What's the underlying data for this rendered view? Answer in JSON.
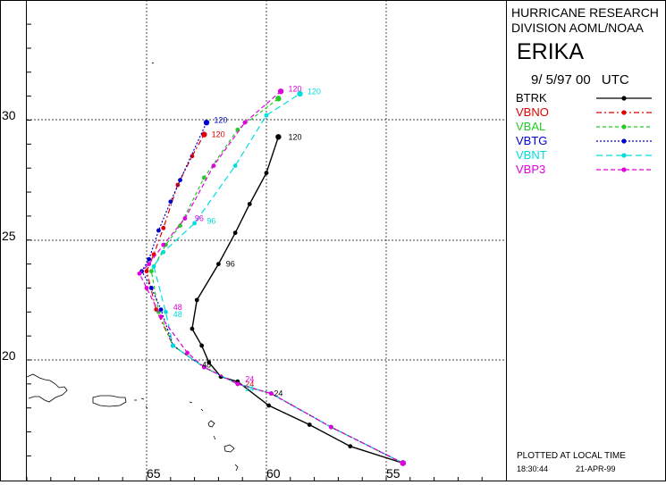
{
  "header": {
    "line1": "HURRICANE RESEARCH",
    "line2": "DIVISION AOML/NOAA",
    "storm_name": "ERIKA",
    "date": "9/ 5/97 00",
    "tz": "UTC"
  },
  "footer": {
    "plotted": "PLOTTED AT LOCAL TIME",
    "time": "18:30:44",
    "date": "21-APR-99"
  },
  "axes": {
    "lat_labels": [
      "30",
      "25",
      "20"
    ],
    "lon_labels": [
      "65",
      "60",
      "55"
    ]
  },
  "colors": {
    "BTRK": "#000000",
    "VBNO": "#e00000",
    "VBAL": "#22cc22",
    "VBTG": "#0000cc",
    "VBNT": "#00dddd",
    "VBP3": "#e000e0"
  },
  "chart_data": {
    "type": "line",
    "title": "ERIKA",
    "xlabel": "",
    "ylabel": "",
    "x_units": "degrees W longitude",
    "y_units": "degrees N latitude",
    "xlim": [
      70.6,
      50.6
    ],
    "ylim": [
      15.2,
      35.0
    ],
    "grid": true,
    "legend_position": "right-panel",
    "series": [
      {
        "name": "BTRK",
        "points": [
          [
            54.3,
            15.7
          ],
          [
            56.5,
            16.4
          ],
          [
            58.2,
            17.3
          ],
          [
            59.9,
            18.1
          ],
          [
            61.2,
            19.1
          ],
          [
            61.9,
            19.3
          ],
          [
            62.4,
            19.9
          ],
          [
            62.7,
            20.6
          ],
          [
            63.1,
            21.3
          ],
          [
            62.9,
            22.5
          ],
          [
            62.0,
            24.0
          ],
          [
            61.3,
            25.3
          ],
          [
            60.7,
            26.5
          ],
          [
            60.0,
            27.8
          ],
          [
            59.5,
            29.3
          ]
        ],
        "labels": [
          {
            "text": "24",
            "lon": 59.8,
            "lat": 18.6
          },
          {
            "text": "48",
            "lon": 62.8,
            "lat": 19.8
          },
          {
            "text": "96",
            "lon": 61.8,
            "lat": 24.0
          },
          {
            "text": "120",
            "lon": 59.2,
            "lat": 29.3
          }
        ]
      },
      {
        "name": "VBNO",
        "points": [
          [
            54.3,
            15.7
          ],
          [
            57.3,
            17.2
          ],
          [
            59.8,
            18.6
          ],
          [
            61.2,
            19.0
          ],
          [
            62.6,
            19.7
          ],
          [
            63.9,
            20.6
          ],
          [
            64.6,
            22.1
          ],
          [
            65.0,
            23.7
          ],
          [
            64.7,
            24.4
          ],
          [
            64.3,
            25.5
          ],
          [
            63.7,
            27.3
          ],
          [
            63.1,
            28.5
          ],
          [
            62.6,
            29.4
          ]
        ],
        "labels": [
          {
            "text": "24",
            "lon": 61.0,
            "lat": 19.0
          },
          {
            "text": "120",
            "lon": 62.4,
            "lat": 29.4
          }
        ]
      },
      {
        "name": "VBAL",
        "points": [
          [
            54.3,
            15.7
          ],
          [
            57.3,
            17.2
          ],
          [
            59.8,
            18.6
          ],
          [
            61.2,
            19.0
          ],
          [
            62.6,
            19.7
          ],
          [
            63.9,
            20.6
          ],
          [
            64.5,
            22.0
          ],
          [
            64.8,
            23.7
          ],
          [
            64.2,
            24.8
          ],
          [
            63.6,
            25.6
          ],
          [
            62.6,
            27.6
          ],
          [
            61.2,
            29.6
          ],
          [
            59.5,
            30.9
          ]
        ],
        "labels": []
      },
      {
        "name": "VBTG",
        "points": [
          [
            54.3,
            15.7
          ],
          [
            57.3,
            17.2
          ],
          [
            59.8,
            18.6
          ],
          [
            61.2,
            19.0
          ],
          [
            62.6,
            19.7
          ],
          [
            63.9,
            20.6
          ],
          [
            64.4,
            22.1
          ],
          [
            64.8,
            23.0
          ],
          [
            65.2,
            23.7
          ],
          [
            64.9,
            24.2
          ],
          [
            64.5,
            25.4
          ],
          [
            64.0,
            26.6
          ],
          [
            63.6,
            27.5
          ],
          [
            62.5,
            29.9
          ]
        ],
        "labels": [
          {
            "text": "120",
            "lon": 62.3,
            "lat": 30.0
          }
        ]
      },
      {
        "name": "VBNT",
        "points": [
          [
            54.3,
            15.7
          ],
          [
            57.3,
            17.2
          ],
          [
            59.8,
            18.6
          ],
          [
            61.2,
            19.0
          ],
          [
            62.6,
            19.7
          ],
          [
            63.9,
            20.6
          ],
          [
            64.2,
            22.0
          ],
          [
            64.7,
            23.9
          ],
          [
            64.3,
            24.5
          ],
          [
            63.0,
            25.7
          ],
          [
            61.3,
            28.1
          ],
          [
            60.0,
            30.2
          ],
          [
            58.6,
            31.1
          ]
        ],
        "labels": [
          {
            "text": "24",
            "lon": 61.0,
            "lat": 18.8
          },
          {
            "text": "48",
            "lon": 64.0,
            "lat": 21.9
          },
          {
            "text": "96",
            "lon": 62.6,
            "lat": 25.8
          },
          {
            "text": "120",
            "lon": 58.4,
            "lat": 31.2
          }
        ]
      },
      {
        "name": "VBP3",
        "points": [
          [
            54.3,
            15.7
          ],
          [
            57.3,
            17.2
          ],
          [
            59.8,
            18.6
          ],
          [
            61.2,
            19.0
          ],
          [
            62.6,
            19.7
          ],
          [
            63.3,
            20.3
          ],
          [
            64.4,
            21.8
          ],
          [
            65.0,
            23.0
          ],
          [
            65.3,
            23.6
          ],
          [
            64.9,
            24.0
          ],
          [
            64.3,
            24.8
          ],
          [
            63.4,
            25.9
          ],
          [
            62.2,
            28.1
          ],
          [
            60.9,
            29.9
          ],
          [
            59.4,
            31.2
          ]
        ],
        "labels": [
          {
            "text": "24",
            "lon": 61.0,
            "lat": 19.2
          },
          {
            "text": "48",
            "lon": 64.0,
            "lat": 22.2
          },
          {
            "text": "96",
            "lon": 63.1,
            "lat": 25.9
          },
          {
            "text": "120",
            "lon": 59.2,
            "lat": 31.3
          }
        ]
      }
    ]
  }
}
